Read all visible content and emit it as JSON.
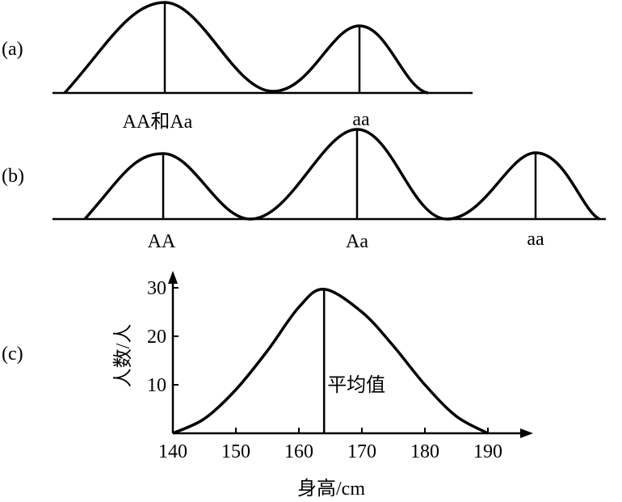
{
  "panel_a": {
    "label": "(a)",
    "peak_labels": [
      "AA和Aa",
      "aa"
    ]
  },
  "panel_b": {
    "label": "(b)",
    "peak_labels": [
      "AA",
      "Aa",
      "aa"
    ]
  },
  "panel_c": {
    "type": "line",
    "label": "(c)",
    "ylabel": "人数/人",
    "xlabel": "身高/cm",
    "annotation": "平均值",
    "x": [
      140,
      145,
      150,
      155,
      160,
      164,
      170,
      175,
      180,
      185,
      190
    ],
    "values": [
      0,
      3,
      9,
      17,
      26,
      29.7,
      25,
      18,
      10,
      3.5,
      0
    ],
    "mean": 164,
    "xlim": [
      140,
      196
    ],
    "ylim": [
      0,
      33
    ],
    "xticks": [
      140,
      150,
      160,
      170,
      180,
      190
    ],
    "yticks": [
      10,
      20,
      30
    ]
  }
}
